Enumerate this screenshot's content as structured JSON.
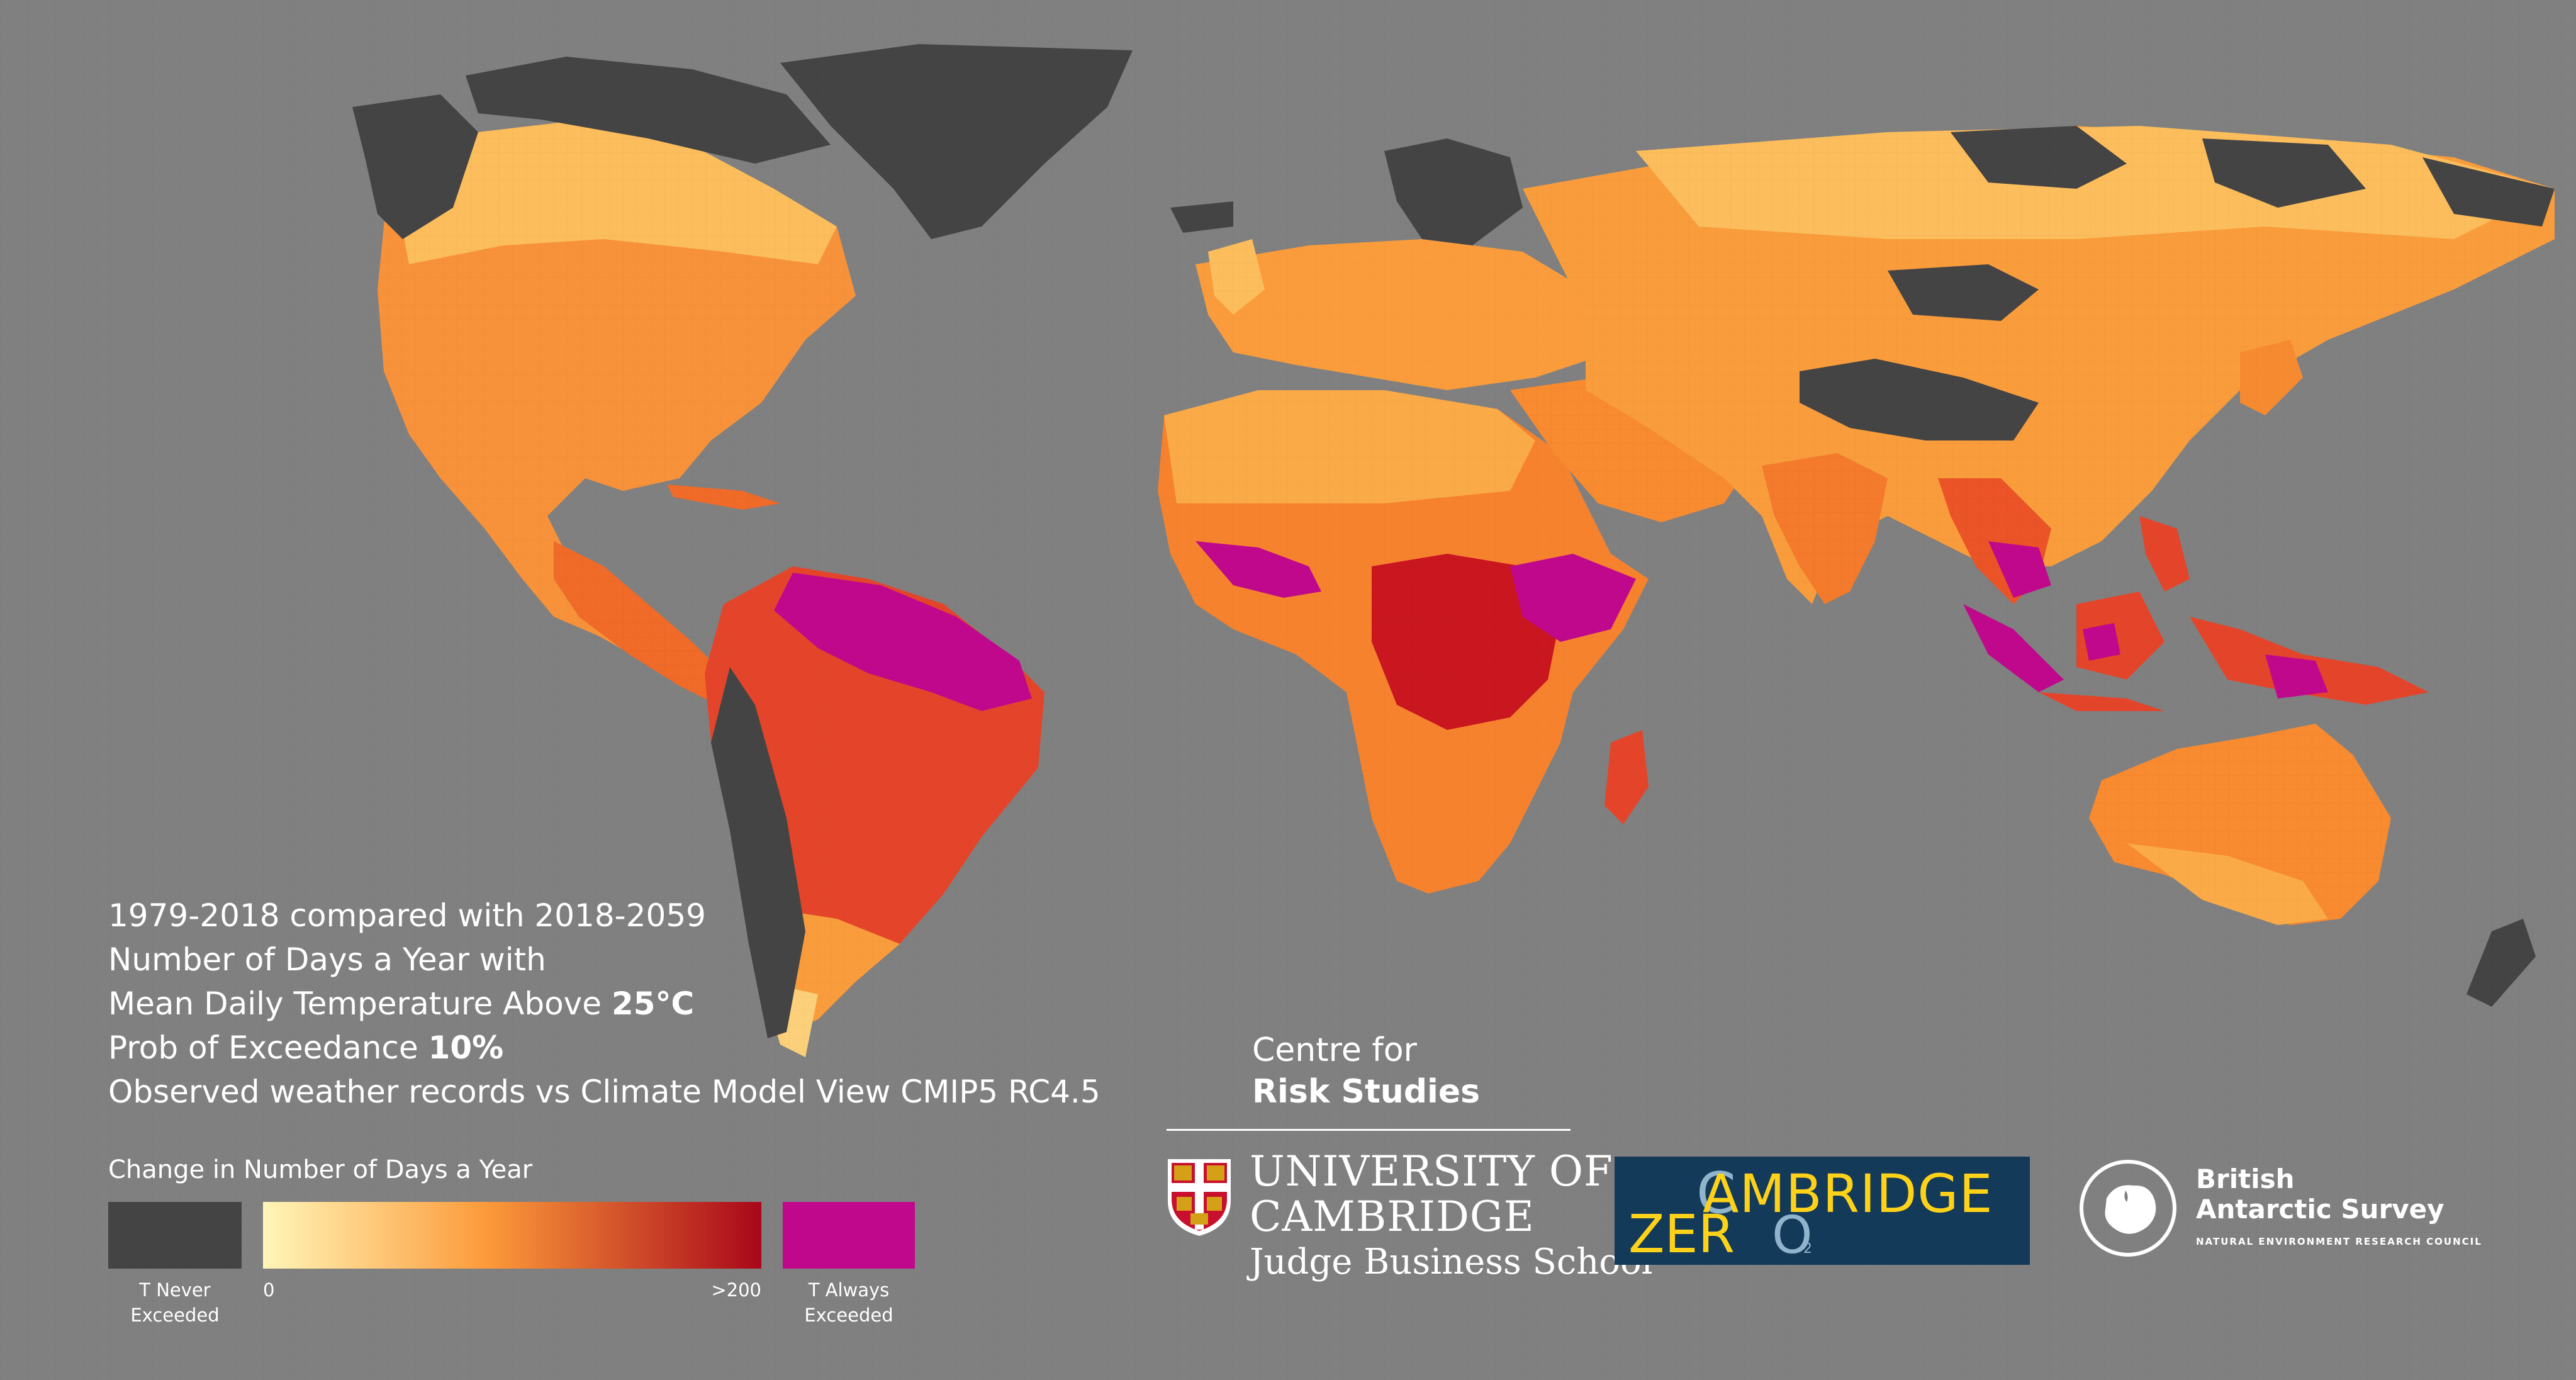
{
  "colors": {
    "ocean": "#808080",
    "never_exceeded": "#444444",
    "gradient_low": "#fff6b8",
    "gradient_mid": "#fc9a3a",
    "gradient_high": "#a8071a",
    "always_exceeded": "#c0088c",
    "cambridge_zero_bg": "#143a5a",
    "cambridge_zero_yellow": "#ffd21a",
    "cambridge_zero_blue": "#8fb4cc"
  },
  "caption": {
    "line1": "1979-2018 compared with 2018-2059",
    "line2": "Number of Days a Year with",
    "line3_prefix": "Mean Daily Temperature Above ",
    "line3_value": "25°C",
    "line4_prefix": "Prob of Exceedance ",
    "line4_value": "10%",
    "line5": "Observed weather records vs Climate Model View CMIP5 RC4.5"
  },
  "legend": {
    "title": "Change in Number of Days a Year",
    "never_label_1": "T Never",
    "never_label_2": "Exceeded",
    "min_label": "0",
    "max_label": ">200",
    "always_label_1": "T Always",
    "always_label_2": "Exceeded"
  },
  "logos": {
    "crs_line1": "Centre for",
    "crs_line2": "Risk Studies",
    "uc_line1": "UNIVERSITY OF",
    "uc_line2": "CAMBRIDGE",
    "uc_line3": "Judge Business School",
    "zero_cambridge": "AMBRIDGE",
    "zero_c": "C",
    "zero_zer": "ZER",
    "zero_o": "O",
    "zero_sub": "2",
    "bas_line1": "British",
    "bas_line2": "Antarctic Survey",
    "bas_line3": "NATURAL ENVIRONMENT RESEARCH COUNCIL"
  }
}
